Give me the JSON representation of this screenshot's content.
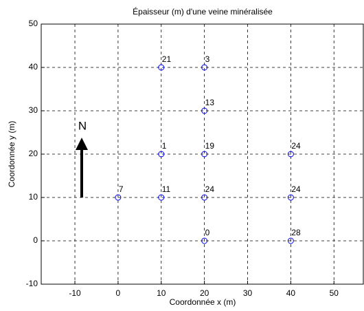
{
  "chart_data": {
    "type": "scatter",
    "title": "Épaisseur (m) d'une veine minéralisée",
    "xlabel": "Coordonnée x (m)",
    "ylabel": "Coordonnée y (m)",
    "x": [
      10,
      20,
      20,
      10,
      20,
      40,
      0,
      10,
      20,
      40,
      20,
      40
    ],
    "y": [
      40,
      40,
      30,
      20,
      20,
      20,
      10,
      10,
      10,
      10,
      0,
      0
    ],
    "values": [
      21,
      3,
      13,
      1,
      19,
      24,
      7,
      11,
      24,
      24,
      0,
      28
    ],
    "color": "#0000ff",
    "xlim": [
      -17.8,
      56.8
    ],
    "xticks": [
      -10,
      0,
      10,
      20,
      30,
      40,
      50
    ],
    "ylim": [
      -10,
      50
    ],
    "yticks": [
      -10,
      0,
      10,
      20,
      30,
      40,
      50
    ],
    "grid": true,
    "annotation": "N"
  }
}
